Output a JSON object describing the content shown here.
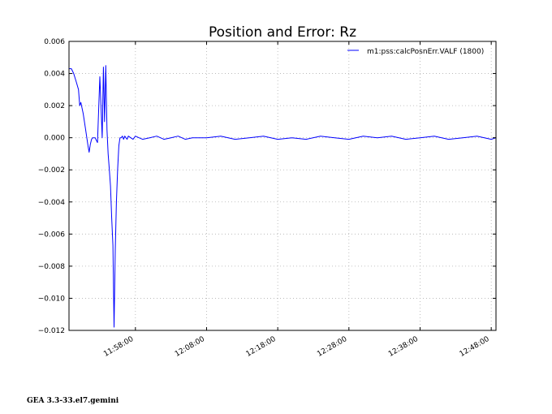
{
  "chart_data": {
    "type": "line",
    "title": "Position and Error:  Rz",
    "xlabel": "",
    "ylabel": "",
    "x_axis": {
      "kind": "time",
      "range": [
        "11:48:40",
        "12:48:40"
      ],
      "tick_labels": [
        "11:58:00",
        "12:08:00",
        "12:18:00",
        "12:28:00",
        "12:38:00",
        "12:48:00"
      ]
    },
    "ylim": [
      -0.012,
      0.006
    ],
    "y_tick_labels": [
      "0.006",
      "0.004",
      "0.002",
      "0.000",
      "−0.002",
      "−0.004",
      "−0.006",
      "−0.008",
      "−0.010",
      "−0.012"
    ],
    "grid": true,
    "legend_position": "top-right",
    "series": [
      {
        "name": "m1:pss:calcPosnErr.VALF (1800)",
        "color": "#0000ff",
        "x": [
          "11:48:40",
          "11:49:00",
          "11:49:20",
          "11:49:40",
          "11:50:00",
          "11:50:10",
          "11:50:20",
          "11:50:40",
          "11:51:00",
          "11:51:20",
          "11:51:30",
          "11:51:40",
          "11:51:50",
          "11:52:00",
          "11:52:20",
          "11:52:40",
          "11:53:00",
          "11:53:20",
          "11:53:30",
          "11:53:40",
          "11:53:50",
          "11:54:00",
          "11:54:10",
          "11:54:20",
          "11:54:30",
          "11:54:40",
          "11:54:50",
          "11:55:00",
          "11:55:10",
          "11:55:20",
          "11:55:30",
          "11:55:40",
          "11:55:50",
          "11:56:00",
          "11:56:10",
          "11:56:20",
          "11:56:30",
          "11:56:40",
          "11:56:50",
          "11:57:00",
          "11:57:20",
          "11:57:40",
          "11:58:00",
          "11:58:30",
          "11:59:00",
          "12:00:00",
          "12:01:00",
          "12:02:00",
          "12:03:00",
          "12:04:00",
          "12:05:00",
          "12:06:00",
          "12:08:00",
          "12:10:00",
          "12:12:00",
          "12:14:00",
          "12:16:00",
          "12:18:00",
          "12:20:00",
          "12:22:00",
          "12:24:00",
          "12:26:00",
          "12:28:00",
          "12:30:00",
          "12:32:00",
          "12:34:00",
          "12:36:00",
          "12:38:00",
          "12:40:00",
          "12:42:00",
          "12:44:00",
          "12:46:00",
          "12:48:00",
          "12:48:40"
        ],
        "y": [
          0.0043,
          0.0043,
          0.004,
          0.0035,
          0.003,
          0.002,
          0.0022,
          0.0015,
          0.0005,
          -0.0005,
          -0.0009,
          -0.0004,
          -0.0001,
          0.0,
          0.0,
          -0.0003,
          0.0038,
          0.0,
          0.0044,
          0.001,
          0.0045,
          0.0005,
          -0.001,
          -0.002,
          -0.003,
          -0.005,
          -0.0067,
          -0.0118,
          -0.007,
          -0.004,
          -0.002,
          -0.0005,
          0.0,
          0.0,
          0.0001,
          -0.0001,
          0.0001,
          0.0,
          -0.0001,
          0.0001,
          0.0,
          -0.0001,
          0.0001,
          0.0,
          -0.0001,
          0.0,
          0.0001,
          -0.0001,
          0.0,
          0.0001,
          -0.0001,
          0.0,
          0.0,
          0.0001,
          -0.0001,
          0.0,
          0.0001,
          -0.0001,
          0.0,
          -0.0001,
          0.0001,
          0.0,
          -0.0001,
          0.0001,
          0.0,
          0.0001,
          -0.0001,
          0.0,
          0.0001,
          -0.0001,
          0.0,
          0.0001,
          -0.0001,
          0.0
        ]
      }
    ]
  },
  "footer_text": "GEA 3.3-33.el7.gemini"
}
